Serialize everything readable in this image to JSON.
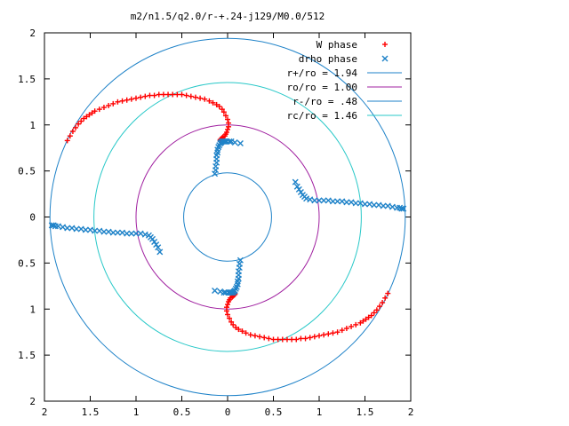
{
  "chart_data": {
    "type": "scatter",
    "title": "m2/n1.5/q2.0/r-+.24-j129/M0.0/512",
    "xlim": [
      -2,
      2
    ],
    "ylim": [
      -2,
      2
    ],
    "x_ticks": [
      {
        "v": -2,
        "label": "2"
      },
      {
        "v": -1.5,
        "label": "1.5"
      },
      {
        "v": -1,
        "label": "1"
      },
      {
        "v": -0.5,
        "label": "0.5"
      },
      {
        "v": 0,
        "label": "0"
      },
      {
        "v": 0.5,
        "label": "0.5"
      },
      {
        "v": 1,
        "label": "1"
      },
      {
        "v": 1.5,
        "label": "1.5"
      },
      {
        "v": 2,
        "label": "2"
      }
    ],
    "y_ticks": [
      {
        "v": 2,
        "label": "2"
      },
      {
        "v": 1.5,
        "label": "1.5"
      },
      {
        "v": 1,
        "label": "1"
      },
      {
        "v": 0.5,
        "label": "0.5"
      },
      {
        "v": 0,
        "label": "0"
      },
      {
        "v": -0.5,
        "label": "0.5"
      },
      {
        "v": -1,
        "label": "1"
      },
      {
        "v": -1.5,
        "label": "1.5"
      },
      {
        "v": -2,
        "label": "2"
      }
    ],
    "grid": false,
    "legend_position": "top-right",
    "circles": [
      {
        "name": "r+/ro = 1.94",
        "radius": 1.94,
        "color": "#1e82c8"
      },
      {
        "name": "ro/ro = 1.00",
        "radius": 1.0,
        "color": "#a020a0"
      },
      {
        "name": "r-/ro = .48",
        "radius": 0.48,
        "color": "#1e82c8"
      },
      {
        "name": "rc/ro = 1.46",
        "radius": 1.46,
        "color": "#28c8c8"
      }
    ],
    "series": [
      {
        "name": "W phase",
        "marker": "plus",
        "color": "#ff0000",
        "x": [
          -1.75,
          -1.72,
          -1.69,
          -1.66,
          -1.63,
          -1.6,
          -1.57,
          -1.54,
          -1.51,
          -1.48,
          -1.45,
          -1.4,
          -1.35,
          -1.3,
          -1.25,
          -1.2,
          -1.15,
          -1.1,
          -1.05,
          -1.0,
          -0.95,
          -0.9,
          -0.85,
          -0.8,
          -0.75,
          -0.7,
          -0.65,
          -0.6,
          -0.55,
          -0.5,
          -0.45,
          -0.4,
          -0.35,
          -0.3,
          -0.25,
          -0.2,
          -0.16,
          -0.12,
          -0.09,
          -0.06,
          -0.04,
          -0.02,
          0.0,
          0.01,
          0.01,
          0.0,
          -0.01,
          -0.02,
          -0.03,
          -0.05,
          -0.06,
          -0.07,
          -0.08,
          -0.08,
          1.75,
          1.72,
          1.69,
          1.66,
          1.63,
          1.6,
          1.57,
          1.54,
          1.51,
          1.48,
          1.45,
          1.4,
          1.35,
          1.3,
          1.25,
          1.2,
          1.15,
          1.1,
          1.05,
          1.0,
          0.95,
          0.9,
          0.85,
          0.8,
          0.75,
          0.7,
          0.65,
          0.6,
          0.55,
          0.5,
          0.45,
          0.4,
          0.35,
          0.3,
          0.25,
          0.2,
          0.16,
          0.12,
          0.09,
          0.06,
          0.04,
          0.02,
          0.0,
          -0.01,
          -0.01,
          0.0,
          0.01,
          0.02,
          0.03,
          0.05,
          0.06,
          0.07,
          0.08,
          0.08
        ],
        "y": [
          0.83,
          0.88,
          0.93,
          0.97,
          1.01,
          1.04,
          1.07,
          1.09,
          1.11,
          1.13,
          1.15,
          1.17,
          1.19,
          1.21,
          1.23,
          1.25,
          1.26,
          1.27,
          1.28,
          1.29,
          1.3,
          1.31,
          1.32,
          1.32,
          1.33,
          1.33,
          1.33,
          1.33,
          1.33,
          1.33,
          1.32,
          1.31,
          1.3,
          1.29,
          1.28,
          1.26,
          1.24,
          1.22,
          1.2,
          1.17,
          1.14,
          1.1,
          1.06,
          1.02,
          0.98,
          0.95,
          0.92,
          0.9,
          0.88,
          0.87,
          0.86,
          0.85,
          0.84,
          0.83,
          -0.83,
          -0.88,
          -0.93,
          -0.97,
          -1.01,
          -1.04,
          -1.07,
          -1.09,
          -1.11,
          -1.13,
          -1.15,
          -1.17,
          -1.19,
          -1.21,
          -1.23,
          -1.25,
          -1.26,
          -1.27,
          -1.28,
          -1.29,
          -1.3,
          -1.31,
          -1.32,
          -1.32,
          -1.33,
          -1.33,
          -1.33,
          -1.33,
          -1.33,
          -1.33,
          -1.32,
          -1.31,
          -1.3,
          -1.29,
          -1.28,
          -1.26,
          -1.24,
          -1.22,
          -1.2,
          -1.17,
          -1.14,
          -1.1,
          -1.06,
          -1.02,
          -0.98,
          -0.95,
          -0.92,
          -0.9,
          -0.88,
          -0.87,
          -0.86,
          -0.85,
          -0.84,
          -0.83
        ]
      },
      {
        "name": "drho phase",
        "marker": "cross",
        "color": "#1e82c8",
        "x": [
          -0.14,
          -0.13,
          -0.13,
          -0.12,
          -0.12,
          -0.12,
          -0.11,
          -0.11,
          -0.1,
          -0.09,
          -0.08,
          -0.07,
          -0.06,
          -0.05,
          -0.04,
          -0.03,
          -0.02,
          -0.01,
          0.02,
          0.04,
          0.08,
          0.14,
          0.74,
          0.76,
          0.78,
          0.8,
          0.82,
          0.84,
          0.86,
          0.9,
          0.95,
          1.0,
          1.05,
          1.1,
          1.15,
          1.2,
          1.25,
          1.3,
          1.35,
          1.4,
          1.45,
          1.5,
          1.55,
          1.6,
          1.65,
          1.7,
          1.75,
          1.8,
          1.85,
          1.88,
          1.9,
          1.92,
          0.14,
          0.13,
          0.13,
          0.12,
          0.12,
          0.12,
          0.11,
          0.11,
          0.1,
          0.09,
          0.08,
          0.07,
          0.06,
          0.05,
          0.04,
          0.03,
          0.02,
          0.01,
          -0.02,
          -0.04,
          -0.08,
          -0.14,
          -0.74,
          -0.76,
          -0.78,
          -0.8,
          -0.82,
          -0.84,
          -0.86,
          -0.9,
          -0.95,
          -1.0,
          -1.05,
          -1.1,
          -1.15,
          -1.2,
          -1.25,
          -1.3,
          -1.35,
          -1.4,
          -1.45,
          -1.5,
          -1.55,
          -1.6,
          -1.65,
          -1.7,
          -1.75,
          -1.8,
          -1.85,
          -1.88,
          -1.9,
          -1.92
        ],
        "y": [
          0.47,
          0.51,
          0.55,
          0.59,
          0.63,
          0.67,
          0.7,
          0.73,
          0.76,
          0.78,
          0.8,
          0.81,
          0.82,
          0.82,
          0.82,
          0.82,
          0.82,
          0.82,
          0.82,
          0.82,
          0.81,
          0.8,
          0.38,
          0.33,
          0.3,
          0.27,
          0.24,
          0.22,
          0.2,
          0.19,
          0.18,
          0.18,
          0.18,
          0.18,
          0.17,
          0.17,
          0.17,
          0.16,
          0.16,
          0.15,
          0.15,
          0.14,
          0.14,
          0.13,
          0.13,
          0.12,
          0.12,
          0.11,
          0.1,
          0.1,
          0.09,
          0.09,
          -0.47,
          -0.51,
          -0.55,
          -0.59,
          -0.63,
          -0.67,
          -0.7,
          -0.73,
          -0.76,
          -0.78,
          -0.8,
          -0.81,
          -0.82,
          -0.82,
          -0.82,
          -0.82,
          -0.82,
          -0.82,
          -0.82,
          -0.82,
          -0.81,
          -0.8,
          -0.38,
          -0.33,
          -0.3,
          -0.27,
          -0.24,
          -0.22,
          -0.2,
          -0.19,
          -0.18,
          -0.18,
          -0.18,
          -0.18,
          -0.17,
          -0.17,
          -0.17,
          -0.16,
          -0.16,
          -0.15,
          -0.15,
          -0.14,
          -0.14,
          -0.13,
          -0.13,
          -0.12,
          -0.12,
          -0.11,
          -0.1,
          -0.1,
          -0.09,
          -0.09
        ]
      }
    ]
  }
}
